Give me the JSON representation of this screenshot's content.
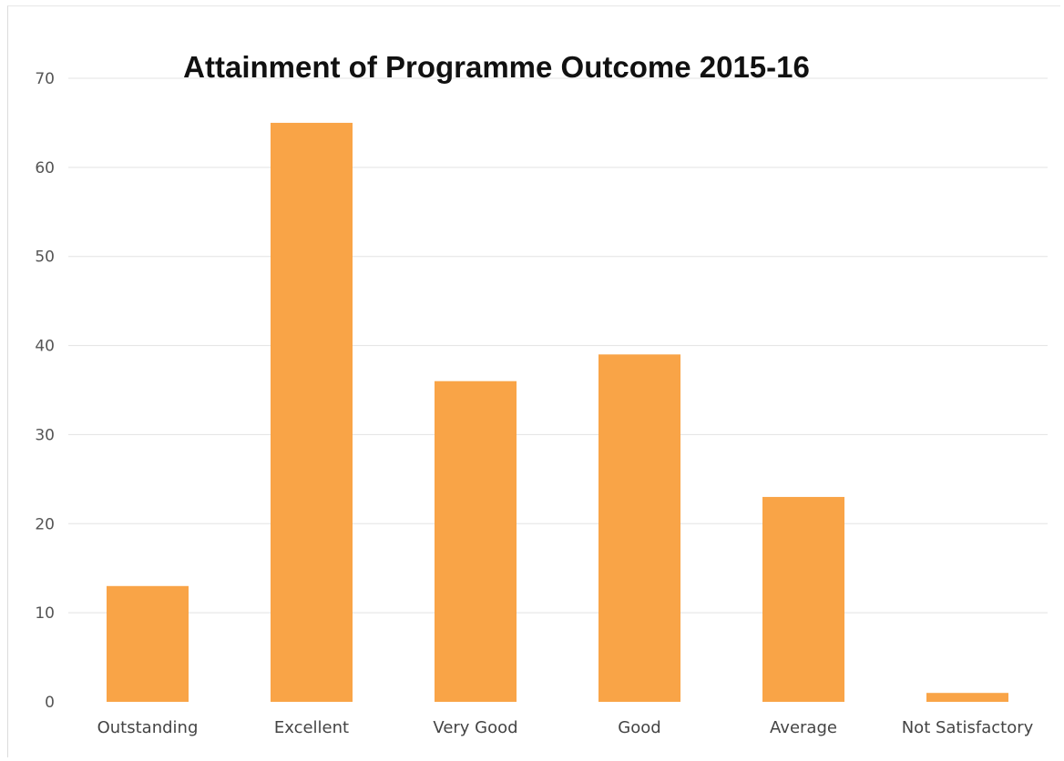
{
  "chart_data": {
    "type": "bar",
    "title": "Attainment of Programme Outcome 2015-16",
    "xlabel": "",
    "ylabel": "",
    "categories": [
      "Outstanding",
      "Excellent",
      "Very Good",
      "Good",
      "Average",
      "Not Satisfactory"
    ],
    "values": [
      13,
      65,
      36,
      39,
      23,
      1
    ],
    "ylim": [
      0,
      70
    ],
    "yticks": [
      0,
      10,
      20,
      30,
      40,
      50,
      60,
      70
    ],
    "grid": true,
    "legend": "none",
    "bar_color": "#F9A447",
    "gridline_color": "#e3e3e3"
  }
}
